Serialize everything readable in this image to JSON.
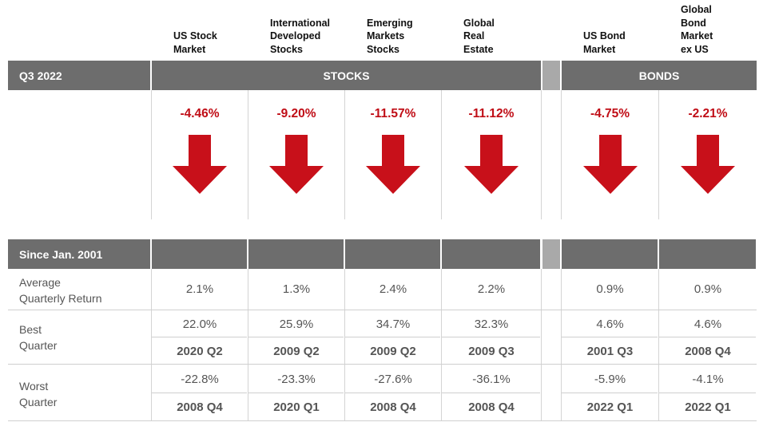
{
  "header": {
    "period_label": "Q3 2022",
    "stocks_label": "STOCKS",
    "bonds_label": "BONDS",
    "since_label": "Since Jan. 2001"
  },
  "row_labels": {
    "average": [
      "Average",
      "Quarterly Return"
    ],
    "best": [
      "Best",
      "Quarter"
    ],
    "worst": [
      "Worst",
      "Quarter"
    ]
  },
  "columns": [
    {
      "name_lines": [
        "US Stock",
        "Market"
      ],
      "q3_return": "-4.46%",
      "average": "2.1%",
      "best": "22.0%",
      "best_quarter": "2020 Q2",
      "worst": "-22.8%",
      "worst_quarter": "2008 Q4"
    },
    {
      "name_lines": [
        "International",
        "Developed",
        "Stocks"
      ],
      "q3_return": "-9.20%",
      "average": "1.3%",
      "best": "25.9%",
      "best_quarter": "2009 Q2",
      "worst": "-23.3%",
      "worst_quarter": "2020 Q1"
    },
    {
      "name_lines": [
        "Emerging",
        "Markets",
        "Stocks"
      ],
      "q3_return": "-11.57%",
      "average": "2.4%",
      "best": "34.7%",
      "best_quarter": "2009 Q2",
      "worst": "-27.6%",
      "worst_quarter": "2008 Q4"
    },
    {
      "name_lines": [
        "Global",
        "Real",
        "Estate"
      ],
      "q3_return": "-11.12%",
      "average": "2.2%",
      "best": "32.3%",
      "best_quarter": "2009 Q3",
      "worst": "-36.1%",
      "worst_quarter": "2008 Q4"
    },
    {
      "name_lines": [
        "US Bond",
        "Market"
      ],
      "q3_return": "-4.75%",
      "average": "0.9%",
      "best": "4.6%",
      "best_quarter": "2001 Q3",
      "worst": "-5.9%",
      "worst_quarter": "2022 Q1"
    },
    {
      "name_lines": [
        "Global",
        "Bond",
        "Market",
        "ex US"
      ],
      "q3_return": "-2.21%",
      "average": "0.9%",
      "best": "4.6%",
      "best_quarter": "2008 Q4",
      "worst": "-4.1%",
      "worst_quarter": "2022 Q1"
    }
  ]
}
